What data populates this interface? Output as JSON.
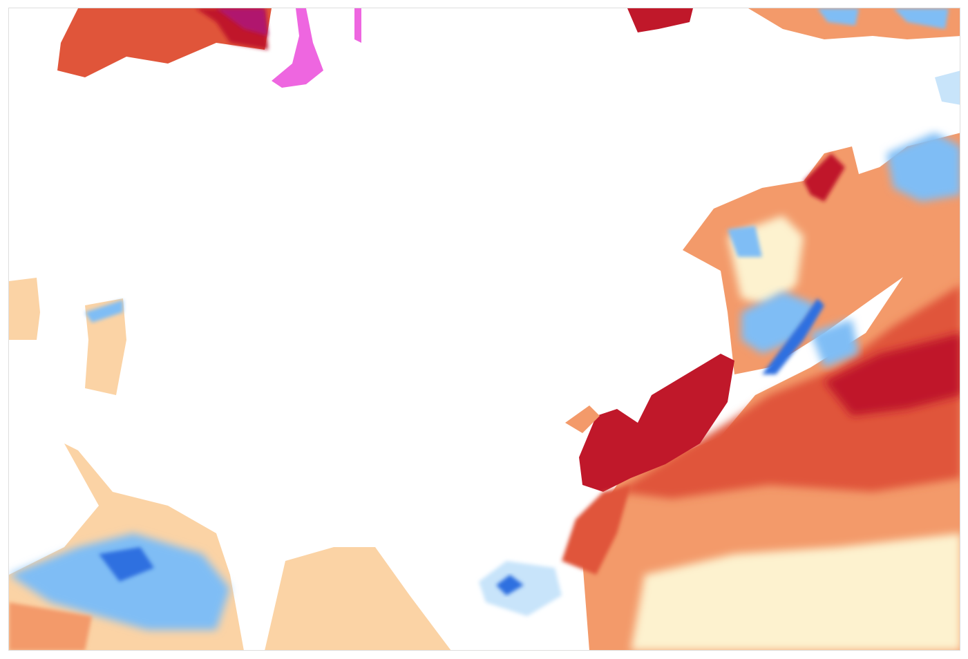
{
  "map": {
    "colors": {
      "strong_warm": "#c0182a",
      "warm": "#e0553a",
      "mild_warm": "#f39a6a",
      "slight_warm": "#fbd3a5",
      "near_zero": "#fdf2cf",
      "slight_cool": "#c8e4fa",
      "cool": "#7fbdf5",
      "strong_cool": "#2f6fe0",
      "extreme_cool": "#5a2bb0",
      "extreme_warm": "#b0156e",
      "extreme_warm_max": "#ee66e0",
      "land": "#ffffff",
      "frame_border": "#dddddd"
    }
  }
}
